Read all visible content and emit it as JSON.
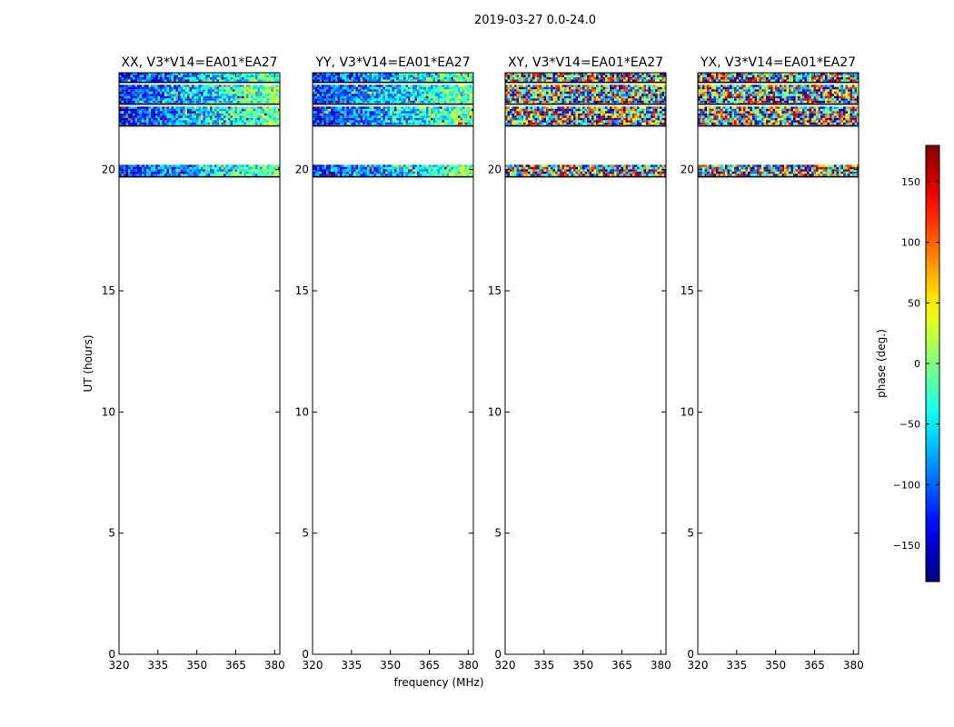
{
  "figure": {
    "suptitle": "2019-03-27 0.0-24.0",
    "xlabel": "frequency (MHz)",
    "ylabel": "UT (hours)"
  },
  "chart_data": {
    "type": "heatmap",
    "x": {
      "label": "frequency (MHz)",
      "range": [
        320,
        382
      ],
      "ticks": [
        320,
        335,
        350,
        365,
        380
      ]
    },
    "y": {
      "label": "UT (hours)",
      "range": [
        0,
        24
      ],
      "ticks": [
        0,
        5,
        10,
        15,
        20
      ]
    },
    "panels": [
      {
        "title": "XX, V3*V14=EA01*EA27",
        "phase_style": "gradient",
        "data_bands_ut": [
          [
            19.7,
            20.2
          ],
          [
            21.8,
            22.6
          ],
          [
            22.7,
            23.5
          ],
          [
            23.6,
            24.0
          ]
        ]
      },
      {
        "title": "YY, V3*V14=EA01*EA27",
        "phase_style": "gradient",
        "data_bands_ut": [
          [
            19.7,
            20.2
          ],
          [
            21.8,
            22.6
          ],
          [
            22.7,
            23.5
          ],
          [
            23.6,
            24.0
          ]
        ]
      },
      {
        "title": "XY, V3*V14=EA01*EA27",
        "phase_style": "random",
        "data_bands_ut": [
          [
            19.7,
            20.2
          ],
          [
            21.8,
            22.6
          ],
          [
            22.7,
            23.5
          ],
          [
            23.6,
            24.0
          ]
        ]
      },
      {
        "title": "YX, V3*V14=EA01*EA27",
        "phase_style": "random",
        "data_bands_ut": [
          [
            19.7,
            20.2
          ],
          [
            21.8,
            22.6
          ],
          [
            22.7,
            23.5
          ],
          [
            23.6,
            24.0
          ]
        ]
      }
    ],
    "colorbar": {
      "label": "phase (deg.)",
      "range": [
        -180,
        180
      ],
      "ticks": [
        -150,
        -100,
        -50,
        0,
        50,
        100,
        150
      ],
      "tick_labels": [
        "−150",
        "−100",
        "−50",
        "0",
        "50",
        "100",
        "150"
      ],
      "colormap": "jet"
    }
  }
}
